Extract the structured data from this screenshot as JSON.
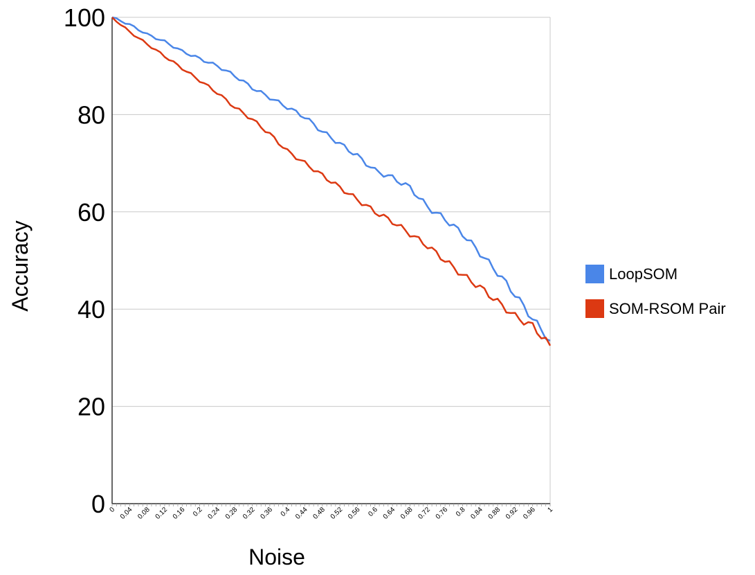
{
  "chart_data": {
    "type": "line",
    "title": "",
    "xlabel": "Noise",
    "ylabel": "Accuracy",
    "ylim": [
      0,
      100
    ],
    "xlim": [
      0,
      1
    ],
    "yticks": [
      "0",
      "20",
      "40",
      "60",
      "80",
      "100"
    ],
    "xtick_labels": [
      "0",
      "0.04",
      "0.08",
      "0.12",
      "0.16",
      "0.2",
      "0.24",
      "0.28",
      "0.32",
      "0.36",
      "0.4",
      "0.44",
      "0.48",
      "0.52",
      "0.56",
      "0.6",
      "0.64",
      "0.68",
      "0.72",
      "0.76",
      "0.8",
      "0.84",
      "0.88",
      "0.92",
      "0.96",
      "1"
    ],
    "grid": true,
    "legend_position": "right",
    "x": [
      0,
      0.04,
      0.08,
      0.12,
      0.16,
      0.2,
      0.24,
      0.28,
      0.32,
      0.36,
      0.4,
      0.44,
      0.48,
      0.52,
      0.56,
      0.6,
      0.64,
      0.68,
      0.72,
      0.76,
      0.8,
      0.84,
      0.88,
      0.92,
      0.96,
      1
    ],
    "series": [
      {
        "name": "LoopSOM",
        "color": "#4a86e8",
        "values": [
          100,
          98.5,
          96.5,
          95.0,
          93.0,
          91.5,
          90.0,
          88.0,
          85.5,
          83.5,
          81.5,
          79.5,
          76.5,
          74.0,
          71.5,
          68.5,
          67.0,
          65.0,
          61.0,
          58.5,
          55.5,
          51.5,
          47.5,
          43.0,
          38.0,
          33.5
        ]
      },
      {
        "name": "SOM-RSOM Pair",
        "color": "#dc3912",
        "values": [
          100,
          97.0,
          94.5,
          92.0,
          89.5,
          87.0,
          84.5,
          81.5,
          79.0,
          76.0,
          72.5,
          70.0,
          67.5,
          65.0,
          62.5,
          60.0,
          58.0,
          55.5,
          53.0,
          50.0,
          47.0,
          44.5,
          41.5,
          38.5,
          36.5,
          32.5
        ]
      }
    ]
  }
}
